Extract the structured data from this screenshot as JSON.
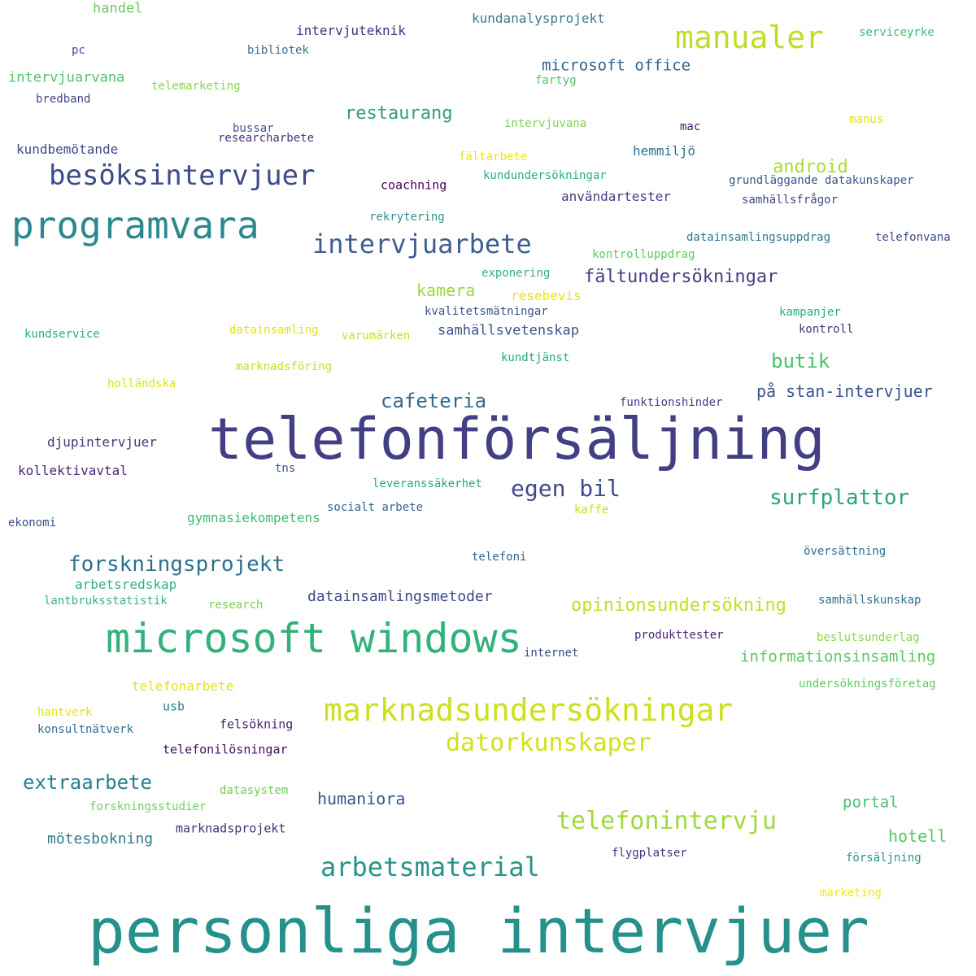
{
  "words": [
    {
      "text": "personliga intervjuer",
      "color": "#25918b"
    },
    {
      "text": "telefonförsäljning",
      "color": "#423f84"
    },
    {
      "text": "microsoft windows",
      "color": "#33b17b"
    },
    {
      "text": "programvara",
      "color": "#2b888e"
    },
    {
      "text": "marknadsundersökningar",
      "color": "#cbe11e"
    },
    {
      "text": "manualer",
      "color": "#bede25"
    },
    {
      "text": "besöksintervjuer",
      "color": "#3e4a89"
    },
    {
      "text": "intervjuarbete",
      "color": "#3f5e8e"
    },
    {
      "text": "arbetsmaterial",
      "color": "#26938a"
    },
    {
      "text": "telefonintervju",
      "color": "#9fd93e"
    },
    {
      "text": "datorkunskaper",
      "color": "#d1e21c"
    },
    {
      "text": "forskningsprojekt",
      "color": "#2d708e"
    },
    {
      "text": "surfplattor",
      "color": "#2aa385"
    },
    {
      "text": "egen bil",
      "color": "#3e4a89"
    },
    {
      "text": "extraarbete",
      "color": "#277f8e"
    },
    {
      "text": "cafeteria",
      "color": "#33698e"
    },
    {
      "text": "opinionsundersökning",
      "color": "#c2df23"
    },
    {
      "text": "butik",
      "color": "#4ac16d"
    },
    {
      "text": "restaurang",
      "color": "#2ea07f"
    },
    {
      "text": "fältundersökningar",
      "color": "#423f85"
    },
    {
      "text": "android",
      "color": "#a9dc33"
    },
    {
      "text": "kamera",
      "color": "#9ad83f"
    },
    {
      "text": "på stan-intervjuer",
      "color": "#3a548c"
    },
    {
      "text": "humaniora",
      "color": "#3a548c"
    },
    {
      "text": "hotell",
      "color": "#54c568"
    },
    {
      "text": "microsoft office",
      "color": "#33638d"
    },
    {
      "text": "informationsinsamling",
      "color": "#5ec962"
    },
    {
      "text": "portal",
      "color": "#4ac16d"
    },
    {
      "text": "datainsamlingsmetoder",
      "color": "#3e4989"
    },
    {
      "text": "mötesbokning",
      "color": "#2f7b8e"
    },
    {
      "text": "djupintervjuer",
      "color": "#3d3a7f"
    },
    {
      "text": "kollektivavtal",
      "color": "#482677"
    },
    {
      "text": "arbetsredskap",
      "color": "#30b37a"
    },
    {
      "text": "gymnasiekompetens",
      "color": "#3bbb75"
    },
    {
      "text": "samhällsvetenskap",
      "color": "#3b528b"
    },
    {
      "text": "kundanalysprojekt",
      "color": "#3a7a8e"
    },
    {
      "text": "intervjuteknik",
      "color": "#472e7c"
    },
    {
      "text": "intervjuarvana",
      "color": "#4ec36b"
    },
    {
      "text": "användartester",
      "color": "#433e85"
    },
    {
      "text": "hemmiljö",
      "color": "#2c718e"
    },
    {
      "text": "kundbemötande",
      "color": "#3e4b89"
    },
    {
      "text": "telefonarbete",
      "color": "#e3e418"
    },
    {
      "text": "handel",
      "color": "#67cc5c"
    },
    {
      "text": "marknadsprojekt",
      "color": "#472c7a"
    },
    {
      "text": "telefonilösningar",
      "color": "#440f5e"
    },
    {
      "text": "felsökning",
      "color": "#482374"
    },
    {
      "text": "datasystem",
      "color": "#6ccd5a"
    },
    {
      "text": "forskningsstudier",
      "color": "#6ece58"
    },
    {
      "text": "lantbruksstatistik",
      "color": "#34b679"
    },
    {
      "text": "research",
      "color": "#7ad151"
    },
    {
      "text": "telefoni",
      "color": "#30628d"
    },
    {
      "text": "översättning",
      "color": "#2e6e8e"
    },
    {
      "text": "samhällskunskap",
      "color": "#2c728e"
    },
    {
      "text": "beslutsunderlag",
      "color": "#8bd646"
    },
    {
      "text": "undersökningsföretag",
      "color": "#5ec962"
    },
    {
      "text": "produkttester",
      "color": "#482475"
    },
    {
      "text": "internet",
      "color": "#3e4a89"
    },
    {
      "text": "flygplatser",
      "color": "#46317e"
    },
    {
      "text": "försäljning",
      "color": "#2d8f8b"
    },
    {
      "text": "marketing",
      "color": "#efe51c"
    },
    {
      "text": "kundservice",
      "color": "#27ad81"
    },
    {
      "text": "datainsamling",
      "color": "#e0e21b"
    },
    {
      "text": "varumärken",
      "color": "#c8e020"
    },
    {
      "text": "marknadsföring",
      "color": "#bfdf25"
    },
    {
      "text": "holländska",
      "color": "#dde318"
    },
    {
      "text": "kundtjänst",
      "color": "#24aa83"
    },
    {
      "text": "funktionshinder",
      "color": "#424086"
    },
    {
      "text": "kontroll",
      "color": "#46337e"
    },
    {
      "text": "kampanjer",
      "color": "#26ad81"
    },
    {
      "text": "kvalitetsmätningar",
      "color": "#3b518b"
    },
    {
      "text": "resebevis",
      "color": "#e5e419"
    },
    {
      "text": "exponering",
      "color": "#33b17b"
    },
    {
      "text": "kontrolluppdrag",
      "color": "#5ec962"
    },
    {
      "text": "datainsamlingsuppdrag",
      "color": "#2a788e"
    },
    {
      "text": "telefonvana",
      "color": "#3e4a89"
    },
    {
      "text": "rekrytering",
      "color": "#2d8f8b"
    },
    {
      "text": "coachning",
      "color": "#440154"
    },
    {
      "text": "kundundersökningar",
      "color": "#29af7f"
    },
    {
      "text": "fältarbete",
      "color": "#e7e419"
    },
    {
      "text": "grundläggande datakunskaper",
      "color": "#39558c"
    },
    {
      "text": "samhällsfrågor",
      "color": "#3f4788"
    },
    {
      "text": "researcharbete",
      "color": "#46337e"
    },
    {
      "text": "bussar",
      "color": "#3b528b"
    },
    {
      "text": "intervjuvana",
      "color": "#7fd34e"
    },
    {
      "text": "mac",
      "color": "#481a6c"
    },
    {
      "text": "manus",
      "color": "#d8e219"
    },
    {
      "text": "fartyg",
      "color": "#4fc46a"
    },
    {
      "text": "telemarketing",
      "color": "#8bd646"
    },
    {
      "text": "bredband",
      "color": "#414487"
    },
    {
      "text": "pc",
      "color": "#3b528b"
    },
    {
      "text": "bibliotek",
      "color": "#3f6e8e"
    },
    {
      "text": "serviceyrke",
      "color": "#3bbb75"
    },
    {
      "text": "ekonomi",
      "color": "#3d4e8a"
    },
    {
      "text": "tns",
      "color": "#3b528b"
    },
    {
      "text": "leveranssäkerhet",
      "color": "#24aa83"
    },
    {
      "text": "socialt arbete",
      "color": "#33638d"
    },
    {
      "text": "kaffe",
      "color": "#cde11d"
    },
    {
      "text": "usb",
      "color": "#25848e"
    },
    {
      "text": "hantverk",
      "color": "#e2e418"
    },
    {
      "text": "konsultnätverk",
      "color": "#2e6d8e"
    }
  ]
}
